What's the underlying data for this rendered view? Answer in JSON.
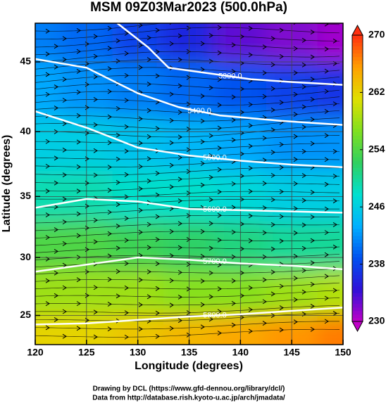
{
  "chart_data": {
    "type": "contour",
    "title": "MSM 09Z03Mar2023 (500.0hPa)",
    "xlabel": "Longitude (degrees)",
    "ylabel": "Latitude  (degrees)",
    "footer": [
      "Drawing by DCL (https://www.gfd-dennou.org/library/dcl/)",
      "Data from http://database.rish.kyoto-u.ac.jp/arch/jmadata/"
    ],
    "projection": "mercator",
    "xlim": [
      120,
      150
    ],
    "ylim": [
      22.4,
      47.6
    ],
    "xticks": [
      120,
      125,
      130,
      135,
      140,
      145,
      150
    ],
    "yticks": [
      25,
      30,
      35,
      40,
      45
    ],
    "grid": true,
    "field": {
      "lon": [
        120,
        125,
        130,
        135,
        140,
        145,
        150
      ],
      "lat": [
        47,
        43,
        39,
        35,
        31,
        27,
        23
      ],
      "values": [
        [
          241,
          240,
          238,
          236,
          233,
          232,
          231
        ],
        [
          243,
          242,
          241,
          240,
          239,
          238,
          237
        ],
        [
          246,
          246,
          245,
          244,
          243,
          242,
          242
        ],
        [
          249,
          249,
          248,
          248,
          247,
          246,
          246
        ],
        [
          254,
          254,
          253,
          252,
          251,
          250,
          250
        ],
        [
          258,
          258,
          258,
          257,
          257,
          258,
          259
        ],
        [
          262,
          262,
          263,
          264,
          265,
          266,
          267
        ]
      ]
    },
    "clim": [
      230,
      270
    ],
    "cticks": [
      230,
      238,
      246,
      254,
      262,
      270
    ],
    "colormap": [
      "#c000c8",
      "#3010d8",
      "#0050f0",
      "#00b0ff",
      "#00e0d0",
      "#30d060",
      "#80e020",
      "#e0e000",
      "#ffa000",
      "#ff3010"
    ],
    "contour_color": "#ffffff",
    "contours": [
      {
        "label": "5300.0",
        "x": [
          128,
          131,
          133,
          137,
          141,
          145,
          150
        ],
        "y": [
          47.6,
          46,
          44.6,
          44.2,
          43.8,
          43.6,
          43.4
        ]
      },
      {
        "label": "5400.0",
        "x": [
          120,
          125,
          130,
          134,
          138,
          144,
          150
        ],
        "y": [
          45.2,
          44.6,
          42.8,
          41.8,
          41.2,
          40.8,
          40.5
        ]
      },
      {
        "label": "5500.0",
        "x": [
          120,
          125,
          130,
          135,
          140,
          145,
          150
        ],
        "y": [
          41.5,
          40.3,
          38.8,
          38.2,
          37.8,
          37.5,
          37.3
        ]
      },
      {
        "label": "5600.0",
        "x": [
          120,
          125,
          130,
          135,
          140,
          145,
          150
        ],
        "y": [
          34.1,
          34.8,
          34.6,
          34.0,
          33.9,
          33.8,
          33.7
        ]
      },
      {
        "label": "5700.0",
        "x": [
          120,
          125,
          130,
          135,
          140,
          145,
          150
        ],
        "y": [
          28.8,
          29.4,
          30.0,
          29.8,
          29.5,
          29.3,
          29.0
        ]
      },
      {
        "label": "5800.0",
        "x": [
          120,
          125,
          130,
          135,
          140,
          145,
          150
        ],
        "y": [
          24.2,
          24.3,
          24.6,
          24.9,
          25.1,
          25.4,
          25.7
        ]
      }
    ]
  }
}
